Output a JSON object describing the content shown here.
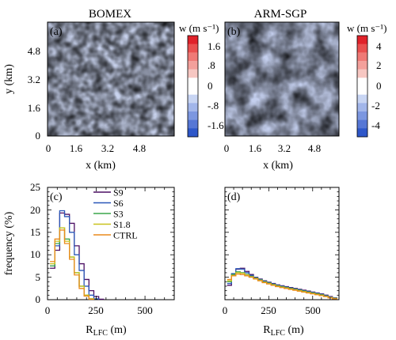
{
  "chart_data": [
    {
      "type": "heatmap",
      "panel": "(a)",
      "title": "BOMEX",
      "xlabel": "x (km)",
      "ylabel": "y (km)",
      "xticks": [
        "0",
        "1.6",
        "3.2",
        "4.8"
      ],
      "yticks": [
        "0",
        "1.6",
        "3.2",
        "4.8"
      ],
      "xlim": [
        0,
        6.4
      ],
      "ylim": [
        0,
        6.4
      ],
      "colorbar": {
        "title": "w (m s⁻¹)",
        "ticks": [
          "1.6",
          ".8",
          "0",
          "-.8",
          "-1.6"
        ],
        "range": [
          -2,
          2
        ]
      }
    },
    {
      "type": "heatmap",
      "panel": "(b)",
      "title": "ARM-SGP",
      "xlabel": "x (km)",
      "ylabel": "",
      "xticks": [
        "0",
        "1.6",
        "3.2",
        "4.8"
      ],
      "yticks": [],
      "xlim": [
        0,
        6.4
      ],
      "ylim": [
        0,
        6.4
      ],
      "colorbar": {
        "title": "w (m s⁻¹)",
        "ticks": [
          "4",
          "2",
          "0",
          "-2",
          "-4"
        ],
        "range": [
          -5,
          5
        ]
      }
    },
    {
      "type": "line",
      "panel": "(c)",
      "xlabel_main": "R",
      "xlabel_sub": "LFC",
      "xlabel_unit": " (m)",
      "ylabel": "frequency (%)",
      "xticks": [
        "0",
        "250",
        "500"
      ],
      "yticks": [
        "0",
        "5",
        "10",
        "15",
        "20",
        "25"
      ],
      "xlim": [
        0,
        650
      ],
      "ylim": [
        0,
        25
      ],
      "legend_position": "top-center",
      "series": [
        {
          "name": "S9",
          "color": "#4b0f63",
          "x": [
            25,
            50,
            75,
            100,
            125,
            150,
            175,
            200,
            225,
            250,
            275
          ],
          "values": [
            7,
            11,
            19.3,
            19,
            17,
            12,
            8,
            4.5,
            2,
            0.7,
            0.1
          ]
        },
        {
          "name": "S6",
          "color": "#2a57b8",
          "x": [
            25,
            50,
            75,
            100,
            125,
            150,
            175,
            200,
            225,
            250
          ],
          "values": [
            7.5,
            12,
            19.8,
            18.5,
            15,
            10,
            6.5,
            3,
            1,
            0.2
          ]
        },
        {
          "name": "S3",
          "color": "#3aa54a",
          "x": [
            25,
            50,
            75,
            100,
            125,
            150,
            175,
            200,
            225
          ],
          "values": [
            7.5,
            12.5,
            16,
            13.5,
            9.5,
            6,
            3,
            1,
            0.2
          ]
        },
        {
          "name": "S1.8",
          "color": "#c9c21c",
          "x": [
            25,
            50,
            75,
            100,
            125,
            150,
            175,
            200,
            225
          ],
          "values": [
            8,
            13,
            16,
            13,
            9.5,
            6,
            3,
            1,
            0.2
          ]
        },
        {
          "name": "CTRL",
          "color": "#ea8a1c",
          "x": [
            25,
            50,
            75,
            100,
            125,
            150,
            175,
            200,
            225
          ],
          "values": [
            8.5,
            13.5,
            15.5,
            12.5,
            9,
            5.5,
            2.5,
            0.8,
            0.1
          ]
        }
      ]
    },
    {
      "type": "line",
      "panel": "(d)",
      "xlabel_main": "R",
      "xlabel_sub": "LFC",
      "xlabel_unit": " (m)",
      "ylabel": "",
      "xticks": [
        "0",
        "250",
        "500"
      ],
      "yticks": [],
      "xlim": [
        0,
        650
      ],
      "ylim": [
        0,
        25
      ],
      "series": [
        {
          "name": "S9",
          "color": "#4b0f63",
          "x": [
            25,
            50,
            75,
            100,
            125,
            150,
            175,
            200,
            225,
            250,
            275,
            300,
            325,
            350,
            375,
            400,
            425,
            450,
            475,
            500,
            525,
            550,
            575,
            600,
            625
          ],
          "values": [
            3.2,
            5.5,
            6.8,
            7,
            6.3,
            5.6,
            5,
            4.6,
            4.2,
            3.9,
            3.6,
            3.3,
            3.1,
            2.9,
            2.7,
            2.5,
            2.3,
            2.1,
            1.9,
            1.7,
            1.5,
            1.3,
            1.0,
            0.7,
            0.4
          ]
        },
        {
          "name": "S6",
          "color": "#2a57b8",
          "x": [
            25,
            50,
            75,
            100,
            125,
            150,
            175,
            200,
            225,
            250,
            275,
            300,
            325,
            350,
            375,
            400,
            425,
            450,
            475,
            500,
            525,
            550,
            575,
            600,
            625
          ],
          "values": [
            3.6,
            5.8,
            6.9,
            6.8,
            6,
            5.4,
            4.9,
            4.5,
            4.1,
            3.8,
            3.5,
            3.2,
            3,
            2.8,
            2.6,
            2.4,
            2.2,
            2.0,
            1.8,
            1.6,
            1.4,
            1.2,
            0.9,
            0.6,
            0.3
          ]
        },
        {
          "name": "S3",
          "color": "#3aa54a",
          "x": [
            25,
            50,
            75,
            100,
            125,
            150,
            175,
            200,
            225,
            250,
            275,
            300,
            325,
            350,
            375,
            400,
            425,
            450,
            475,
            500,
            525,
            550,
            575,
            600,
            625
          ],
          "values": [
            4,
            5.6,
            6.2,
            6,
            5.6,
            5.2,
            4.8,
            4.4,
            4,
            3.7,
            3.4,
            3.1,
            2.9,
            2.7,
            2.5,
            2.3,
            2.1,
            1.9,
            1.7,
            1.5,
            1.3,
            1.1,
            0.8,
            0.5,
            0.3
          ]
        },
        {
          "name": "S1.8",
          "color": "#c9c21c",
          "x": [
            25,
            50,
            75,
            100,
            125,
            150,
            175,
            200,
            225,
            250,
            275,
            300,
            325,
            350,
            375,
            400,
            425,
            450,
            475,
            500,
            525,
            550,
            575,
            600,
            625
          ],
          "values": [
            4.2,
            5.4,
            6,
            5.9,
            5.5,
            5.1,
            4.7,
            4.3,
            3.9,
            3.6,
            3.3,
            3,
            2.8,
            2.6,
            2.4,
            2.2,
            2.0,
            1.8,
            1.6,
            1.4,
            1.2,
            1.0,
            0.7,
            0.5,
            0.2
          ]
        },
        {
          "name": "CTRL",
          "color": "#ea8a1c",
          "x": [
            25,
            50,
            75,
            100,
            125,
            150,
            175,
            200,
            225,
            250,
            275,
            300,
            325,
            350,
            375,
            400,
            425,
            450,
            475,
            500,
            525,
            550,
            575,
            600,
            625
          ],
          "values": [
            4.5,
            5.3,
            5.7,
            5.6,
            5.3,
            5,
            4.6,
            4.2,
            3.8,
            3.5,
            3.2,
            2.9,
            2.7,
            2.5,
            2.3,
            2.1,
            1.9,
            1.7,
            1.5,
            1.3,
            1.1,
            0.9,
            0.7,
            0.4,
            0.2
          ]
        }
      ]
    }
  ]
}
